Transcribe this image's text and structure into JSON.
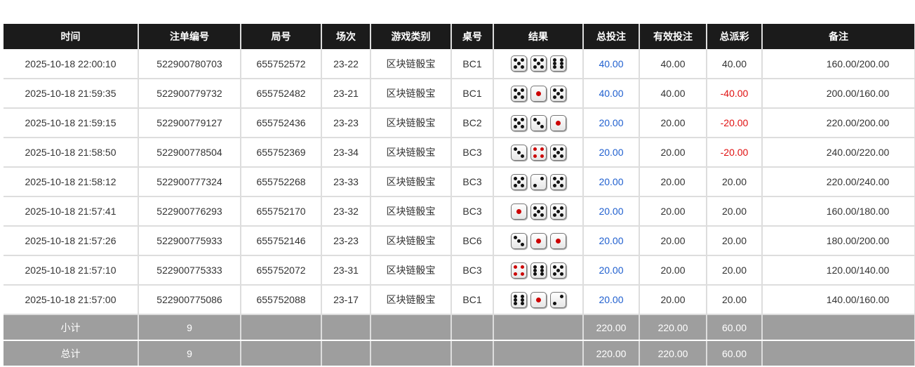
{
  "headers": [
    "时间",
    "注单编号",
    "局号",
    "场次",
    "游戏类别",
    "桌号",
    "结果",
    "总投注",
    "有效投注",
    "总派彩",
    "备注"
  ],
  "rows": [
    {
      "time": "2025-10-18 22:00:10",
      "bet_id": "522900780703",
      "round": "655752572",
      "session": "23-22",
      "game": "区块链骰宝",
      "table": "BC1",
      "dice": [
        5,
        5,
        6
      ],
      "total_bet": "40.00",
      "valid_bet": "40.00",
      "payout": "40.00",
      "payout_negative": false,
      "remark": "160.00/200.00"
    },
    {
      "time": "2025-10-18 21:59:35",
      "bet_id": "522900779732",
      "round": "655752482",
      "session": "23-21",
      "game": "区块链骰宝",
      "table": "BC1",
      "dice": [
        5,
        1,
        5
      ],
      "total_bet": "40.00",
      "valid_bet": "40.00",
      "payout": "-40.00",
      "payout_negative": true,
      "remark": "200.00/160.00"
    },
    {
      "time": "2025-10-18 21:59:15",
      "bet_id": "522900779127",
      "round": "655752436",
      "session": "23-23",
      "game": "区块链骰宝",
      "table": "BC2",
      "dice": [
        5,
        3,
        1
      ],
      "total_bet": "20.00",
      "valid_bet": "20.00",
      "payout": "-20.00",
      "payout_negative": true,
      "remark": "220.00/200.00"
    },
    {
      "time": "2025-10-18 21:58:50",
      "bet_id": "522900778504",
      "round": "655752369",
      "session": "23-34",
      "game": "区块链骰宝",
      "table": "BC3",
      "dice": [
        3,
        4,
        5
      ],
      "total_bet": "20.00",
      "valid_bet": "20.00",
      "payout": "-20.00",
      "payout_negative": true,
      "remark": "240.00/220.00"
    },
    {
      "time": "2025-10-18 21:58:12",
      "bet_id": "522900777324",
      "round": "655752268",
      "session": "23-33",
      "game": "区块链骰宝",
      "table": "BC3",
      "dice": [
        5,
        2,
        5
      ],
      "total_bet": "20.00",
      "valid_bet": "20.00",
      "payout": "20.00",
      "payout_negative": false,
      "remark": "220.00/240.00"
    },
    {
      "time": "2025-10-18 21:57:41",
      "bet_id": "522900776293",
      "round": "655752170",
      "session": "23-32",
      "game": "区块链骰宝",
      "table": "BC3",
      "dice": [
        1,
        5,
        5
      ],
      "total_bet": "20.00",
      "valid_bet": "20.00",
      "payout": "20.00",
      "payout_negative": false,
      "remark": "160.00/180.00"
    },
    {
      "time": "2025-10-18 21:57:26",
      "bet_id": "522900775933",
      "round": "655752146",
      "session": "23-23",
      "game": "区块链骰宝",
      "table": "BC6",
      "dice": [
        3,
        1,
        1
      ],
      "total_bet": "20.00",
      "valid_bet": "20.00",
      "payout": "20.00",
      "payout_negative": false,
      "remark": "180.00/200.00"
    },
    {
      "time": "2025-10-18 21:57:10",
      "bet_id": "522900775333",
      "round": "655752072",
      "session": "23-31",
      "game": "区块链骰宝",
      "table": "BC3",
      "dice": [
        4,
        6,
        5
      ],
      "total_bet": "20.00",
      "valid_bet": "20.00",
      "payout": "20.00",
      "payout_negative": false,
      "remark": "120.00/140.00"
    },
    {
      "time": "2025-10-18 21:57:00",
      "bet_id": "522900775086",
      "round": "655752088",
      "session": "23-17",
      "game": "区块链骰宝",
      "table": "BC1",
      "dice": [
        6,
        1,
        2
      ],
      "total_bet": "20.00",
      "valid_bet": "20.00",
      "payout": "20.00",
      "payout_negative": false,
      "remark": "140.00/160.00"
    }
  ],
  "footer": [
    {
      "label": "小计",
      "count": "9",
      "total_bet": "220.00",
      "valid_bet": "220.00",
      "payout": "60.00"
    },
    {
      "label": "总计",
      "count": "9",
      "total_bet": "220.00",
      "valid_bet": "220.00",
      "payout": "60.00"
    }
  ],
  "colors": {
    "header_bg": "#1b1b1b",
    "footer_bg": "#9e9e9e",
    "bet_blue": "#1f5fcf",
    "loss_red": "#e01010",
    "pip_red": "#c00000"
  }
}
